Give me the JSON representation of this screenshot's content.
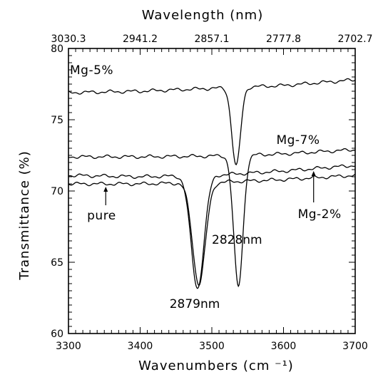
{
  "chart_data": {
    "type": "line",
    "title": "",
    "xlabel": "Wavenumbers (cm ⁻¹)",
    "ylabel": "Transmittance (%)",
    "x2label": "Wavelength (nm)",
    "xlim": [
      3300,
      3700
    ],
    "ylim": [
      60,
      80
    ],
    "x_ticks": [
      3300,
      3400,
      3500,
      3600,
      3700
    ],
    "x_tick_labels": [
      "3300",
      "3400",
      "3500",
      "3600",
      "3700"
    ],
    "y_ticks": [
      60,
      65,
      70,
      75,
      80
    ],
    "y_tick_labels": [
      "60",
      "65",
      "70",
      "75",
      "80"
    ],
    "x2_ticks": [
      3300,
      3400,
      3500,
      3600,
      3700
    ],
    "x2_tick_labels": [
      "3030.3",
      "2941.2",
      "2857.1",
      "2777.8",
      "2702.7"
    ],
    "grid": false,
    "legend": "none",
    "series": [
      {
        "name": "Mg-5%",
        "baseline": [
          [
            3300,
            76.9
          ],
          [
            3400,
            77.0
          ],
          [
            3500,
            77.2
          ],
          [
            3600,
            77.4
          ],
          [
            3700,
            77.8
          ]
        ],
        "dip": {
          "center": 3534,
          "depth": 5.5,
          "width": 6
        }
      },
      {
        "name": "Mg-7%",
        "baseline": [
          [
            3300,
            72.4
          ],
          [
            3400,
            72.4
          ],
          [
            3500,
            72.45
          ],
          [
            3600,
            72.6
          ],
          [
            3700,
            72.9
          ]
        ],
        "dip": {
          "center": 3537,
          "depth": 9.2,
          "width": 6.5
        }
      },
      {
        "name": "Mg-2%",
        "baseline": [
          [
            3300,
            71.1
          ],
          [
            3400,
            71.0
          ],
          [
            3500,
            71.1
          ],
          [
            3600,
            71.4
          ],
          [
            3700,
            71.8
          ]
        ],
        "dip": {
          "center": 3480,
          "depth": 7.9,
          "width": 9
        }
      },
      {
        "name": "pure",
        "baseline": [
          [
            3300,
            70.5
          ],
          [
            3400,
            70.5
          ],
          [
            3500,
            70.6
          ],
          [
            3600,
            70.8
          ],
          [
            3700,
            71.1
          ]
        ],
        "dip": {
          "center": 3482,
          "depth": 7.1,
          "width": 9
        }
      }
    ],
    "annotations": [
      {
        "text": "Mg-5%",
        "x": 3302,
        "y": 78.2
      },
      {
        "text": "Mg-7%",
        "x": 3590,
        "y": 73.3
      },
      {
        "text": "Mg-2%",
        "x": 3620,
        "y": 68.1
      },
      {
        "text": "pure",
        "x": 3326,
        "y": 68.0
      },
      {
        "text": "2828nm",
        "x": 3500,
        "y": 66.3
      },
      {
        "text": "2879nm",
        "x": 3441,
        "y": 61.8
      }
    ],
    "arrows": [
      {
        "x": 3352,
        "from_y": 69.0,
        "to_y": 70.3
      },
      {
        "x": 3642,
        "from_y": 69.2,
        "to_y": 71.4
      }
    ]
  }
}
